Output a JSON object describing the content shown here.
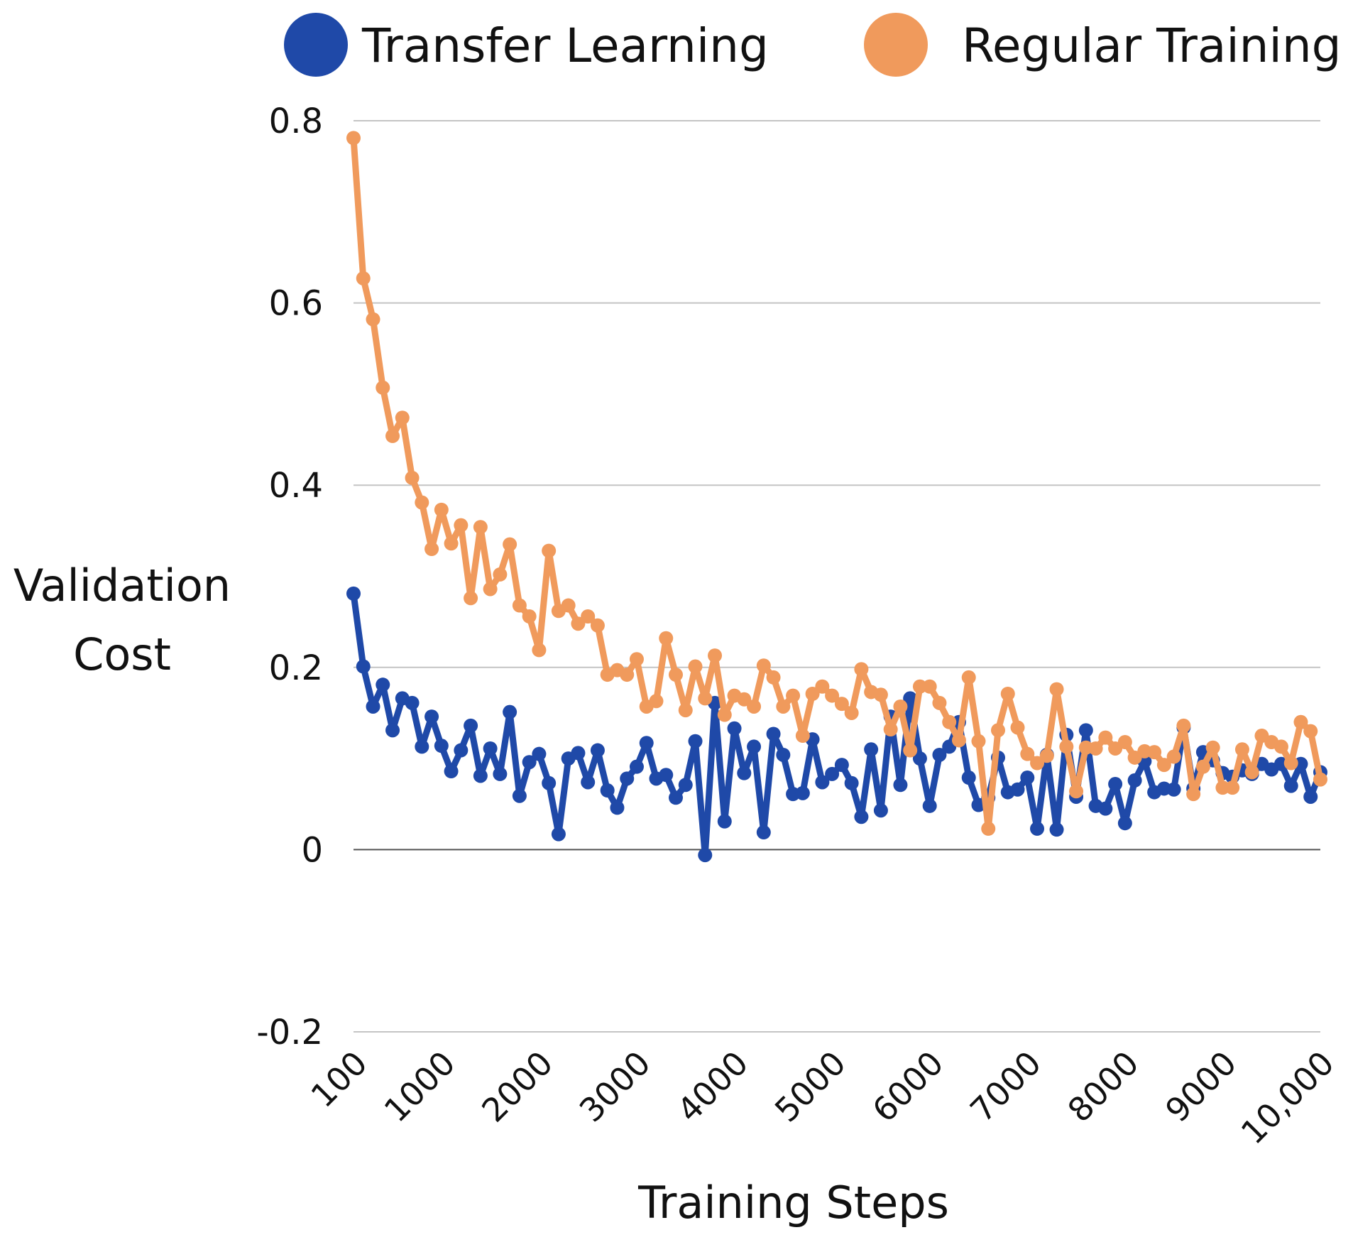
{
  "chart_data": {
    "type": "line",
    "title": "",
    "xlabel": "Training Steps",
    "ylabel": "Validation Cost",
    "ylim": [
      -0.2,
      0.8
    ],
    "yticks": [
      0.8,
      0.6,
      0.4,
      0.2,
      0,
      -0.2
    ],
    "ytick_labels": [
      "0.8",
      "0.6",
      "0.4",
      "0.2",
      "0",
      "-0.2"
    ],
    "xlim": [
      100,
      10000
    ],
    "xticks": [
      100,
      1000,
      2000,
      3000,
      4000,
      5000,
      6000,
      7000,
      8000,
      9000,
      10000
    ],
    "xtick_labels": [
      "100",
      "1000",
      "2000",
      "3000",
      "4000",
      "5000",
      "6000",
      "7000",
      "8000",
      "9000",
      "10,000"
    ],
    "grid": true,
    "legend_position": "top",
    "x": [
      100,
      200,
      300,
      400,
      500,
      600,
      700,
      800,
      900,
      1000,
      1100,
      1200,
      1300,
      1400,
      1500,
      1600,
      1700,
      1800,
      1900,
      2000,
      2100,
      2200,
      2300,
      2400,
      2500,
      2600,
      2700,
      2800,
      2900,
      3000,
      3100,
      3200,
      3300,
      3400,
      3500,
      3600,
      3700,
      3800,
      3900,
      4000,
      4100,
      4200,
      4300,
      4400,
      4500,
      4600,
      4700,
      4800,
      4900,
      5000,
      5100,
      5200,
      5300,
      5400,
      5500,
      5600,
      5700,
      5800,
      5900,
      6000,
      6100,
      6200,
      6300,
      6400,
      6500,
      6600,
      6700,
      6800,
      6900,
      7000,
      7100,
      7200,
      7300,
      7400,
      7500,
      7600,
      7700,
      7800,
      7900,
      8000,
      8100,
      8200,
      8300,
      8400,
      8500,
      8600,
      8700,
      8800,
      8900,
      9000,
      9100,
      9200,
      9300,
      9400,
      9500,
      9600,
      9700,
      9800,
      9900,
      10000
    ],
    "series": [
      {
        "name": "Transfer Learning",
        "color": "#1f49a8",
        "values": [
          0.281,
          0.201,
          0.157,
          0.181,
          0.131,
          0.166,
          0.161,
          0.113,
          0.146,
          0.114,
          0.086,
          0.109,
          0.136,
          0.081,
          0.111,
          0.083,
          0.151,
          0.059,
          0.096,
          0.105,
          0.073,
          0.017,
          0.1,
          0.106,
          0.074,
          0.109,
          0.065,
          0.046,
          0.078,
          0.091,
          0.117,
          0.078,
          0.082,
          0.057,
          0.071,
          0.119,
          -0.006,
          0.161,
          0.031,
          0.133,
          0.084,
          0.113,
          0.019,
          0.127,
          0.104,
          0.061,
          0.062,
          0.121,
          0.074,
          0.083,
          0.093,
          0.073,
          0.036,
          0.11,
          0.043,
          0.146,
          0.071,
          0.166,
          0.1,
          0.048,
          0.104,
          0.113,
          0.14,
          0.079,
          0.049,
          0.057,
          0.101,
          0.063,
          0.066,
          0.079,
          0.023,
          0.104,
          0.022,
          0.126,
          0.058,
          0.131,
          0.048,
          0.045,
          0.072,
          0.029,
          0.076,
          0.097,
          0.063,
          0.067,
          0.066,
          0.134,
          0.067,
          0.107,
          0.098,
          0.084,
          0.08,
          0.087,
          0.083,
          0.094,
          0.088,
          0.094,
          0.07,
          0.094,
          0.058,
          0.085
        ]
      },
      {
        "name": "Regular Training",
        "color": "#f09a5c",
        "values": [
          0.781,
          0.627,
          0.582,
          0.507,
          0.454,
          0.474,
          0.408,
          0.381,
          0.33,
          0.373,
          0.336,
          0.356,
          0.276,
          0.354,
          0.286,
          0.302,
          0.335,
          0.268,
          0.256,
          0.219,
          0.328,
          0.262,
          0.268,
          0.248,
          0.256,
          0.246,
          0.192,
          0.197,
          0.192,
          0.209,
          0.157,
          0.163,
          0.232,
          0.192,
          0.153,
          0.201,
          0.166,
          0.213,
          0.148,
          0.169,
          0.165,
          0.157,
          0.202,
          0.189,
          0.157,
          0.169,
          0.125,
          0.171,
          0.179,
          0.169,
          0.16,
          0.15,
          0.198,
          0.173,
          0.17,
          0.132,
          0.157,
          0.109,
          0.179,
          0.179,
          0.161,
          0.14,
          0.12,
          0.189,
          0.119,
          0.023,
          0.131,
          0.171,
          0.134,
          0.105,
          0.095,
          0.103,
          0.176,
          0.113,
          0.064,
          0.112,
          0.111,
          0.123,
          0.111,
          0.118,
          0.101,
          0.108,
          0.107,
          0.093,
          0.102,
          0.136,
          0.061,
          0.091,
          0.112,
          0.068,
          0.068,
          0.11,
          0.085,
          0.125,
          0.118,
          0.113,
          0.095,
          0.14,
          0.13,
          0.077
        ]
      }
    ]
  }
}
